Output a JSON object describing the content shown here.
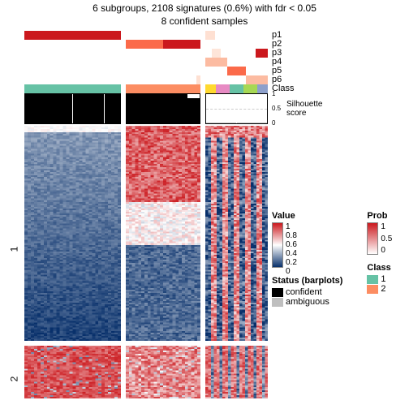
{
  "title_line1": "6 subgroups, 2108 signatures (0.6%) with fdr < 0.05",
  "title_line2": "8 confident samples",
  "layout": {
    "block_widths": [
      119,
      92,
      77
    ],
    "block_gap": 6,
    "heatmap1_height": 265,
    "heatmap2_height": 65
  },
  "row_labels": [
    "p1",
    "p2",
    "p3",
    "p4",
    "p5",
    "p6",
    "Class"
  ],
  "sil_label": "Silhouette\nscore",
  "sil_ticks": [
    "1",
    "0.5",
    "0"
  ],
  "y_labels": [
    "1",
    "2"
  ],
  "colors": {
    "white": "#ffffff",
    "red_max": "#cb181d",
    "red_mid": "#fb6a4a",
    "red_light": "#fee0d2",
    "blue_max": "#08306b",
    "blue_mid": "#4292c6",
    "blue_light": "#c6dbef",
    "class_teal": "#66c2a5",
    "class_salmon": "#fc8d62",
    "class_yellow": "#ffd92f",
    "class_pink": "#e78ac3",
    "class_green": "#a6d854",
    "class_blue": "#8da0cb",
    "black": "#000000",
    "grey": "#bfbfbf"
  },
  "prob_tracks": {
    "comment": "6 prob rows × 3 blocks, each block has segments with color",
    "rows": [
      [
        [
          {
            "w": 1.0,
            "c": "#cb181d"
          }
        ],
        [
          {
            "w": 1.0,
            "c": "#ffffff"
          }
        ],
        [
          {
            "w": 0.15,
            "c": "#fee0d2"
          },
          {
            "w": 0.85,
            "c": "#ffffff"
          }
        ]
      ],
      [
        [
          {
            "w": 1.0,
            "c": "#ffffff"
          }
        ],
        [
          {
            "w": 0.5,
            "c": "#fb6a4a"
          },
          {
            "w": 0.5,
            "c": "#cb181d"
          }
        ],
        [
          {
            "w": 1.0,
            "c": "#ffffff"
          }
        ]
      ],
      [
        [
          {
            "w": 1.0,
            "c": "#ffffff"
          }
        ],
        [
          {
            "w": 1.0,
            "c": "#ffffff"
          }
        ],
        [
          {
            "w": 0.1,
            "c": "#ffffff"
          },
          {
            "w": 0.15,
            "c": "#fee5d9"
          },
          {
            "w": 0.55,
            "c": "#ffffff"
          },
          {
            "w": 0.2,
            "c": "#cb181d"
          }
        ]
      ],
      [
        [
          {
            "w": 1.0,
            "c": "#ffffff"
          }
        ],
        [
          {
            "w": 1.0,
            "c": "#ffffff"
          }
        ],
        [
          {
            "w": 0.35,
            "c": "#fcbba1"
          },
          {
            "w": 0.65,
            "c": "#ffffff"
          }
        ]
      ],
      [
        [
          {
            "w": 1.0,
            "c": "#ffffff"
          }
        ],
        [
          {
            "w": 1.0,
            "c": "#ffffff"
          }
        ],
        [
          {
            "w": 0.35,
            "c": "#ffffff"
          },
          {
            "w": 0.3,
            "c": "#fb6a4a"
          },
          {
            "w": 0.35,
            "c": "#ffffff"
          }
        ]
      ],
      [
        [
          {
            "w": 1.0,
            "c": "#ffffff"
          }
        ],
        [
          {
            "w": 0.95,
            "c": "#ffffff"
          },
          {
            "w": 0.05,
            "c": "#fee0d2"
          }
        ],
        [
          {
            "w": 0.65,
            "c": "#ffffff"
          },
          {
            "w": 0.35,
            "c": "#fcbba1"
          }
        ]
      ]
    ]
  },
  "class_row": [
    [
      {
        "w": 1.0,
        "c": "#66c2a5"
      }
    ],
    [
      {
        "w": 1.0,
        "c": "#fc8d62"
      }
    ],
    [
      {
        "w": 0.17,
        "c": "#ffd92f"
      },
      {
        "w": 0.22,
        "c": "#e78ac3"
      },
      {
        "w": 0.22,
        "c": "#66c2a5"
      },
      {
        "w": 0.22,
        "c": "#a6d854"
      },
      {
        "w": 0.17,
        "c": "#8da0cb"
      }
    ]
  ],
  "silhouette": {
    "blocks": [
      {
        "bars": [
          {
            "h": 1.0,
            "c": "#000000",
            "n": 30
          }
        ]
      },
      {
        "bars": [
          {
            "h": 1.0,
            "c": "#000000",
            "n": 20
          },
          {
            "h": 0.85,
            "c": "#000000",
            "n": 4
          }
        ]
      },
      {
        "bars": [
          {
            "h": 0.02,
            "c": "#bfbfbf",
            "n": 22
          }
        ]
      }
    ]
  },
  "heatmap": {
    "palette_low": "#08306b",
    "palette_mid_low": "#4292c6",
    "palette_mid": "#ffffff",
    "palette_mid_high": "#fb6a4a",
    "palette_high": "#cb181d",
    "blocks": [
      {
        "cols": 30,
        "hm1_profile": "blue_fade",
        "hm2_profile": "red_strong"
      },
      {
        "cols": 24,
        "hm1_profile": "red_to_blue",
        "hm2_profile": "red_mid"
      },
      {
        "cols": 22,
        "hm1_profile": "striped",
        "hm2_profile": "striped_red"
      }
    ],
    "hm1_rows": 130,
    "hm2_rows": 32
  },
  "legends": {
    "value": {
      "title": "Value",
      "ticks": [
        "1",
        "0.8",
        "0.6",
        "0.4",
        "0.2",
        "0"
      ]
    },
    "prob": {
      "title": "Prob",
      "ticks": [
        "1",
        "0.5",
        "0"
      ]
    },
    "status": {
      "title": "Status (barplots)",
      "items": [
        [
          "#000000",
          "confident"
        ],
        [
          "#bfbfbf",
          "ambiguous"
        ]
      ]
    },
    "class": {
      "title": "Class",
      "items": [
        [
          "#66c2a5",
          "1"
        ],
        [
          "#fc8d62",
          "2"
        ]
      ]
    }
  }
}
